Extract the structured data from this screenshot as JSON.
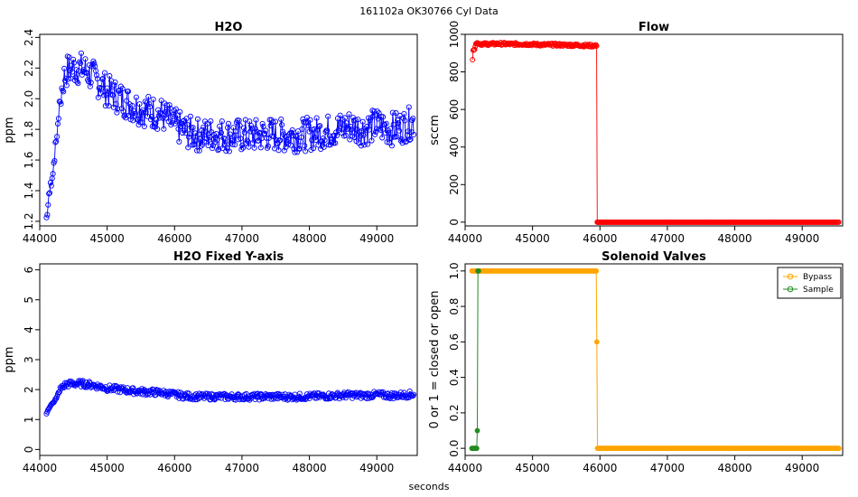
{
  "figure": {
    "suptitle": "161102a    OK30766   Cyl Data",
    "xlabel": "seconds"
  },
  "chart_data": [
    {
      "type": "line",
      "title": "H2O",
      "ylabel": "ppm",
      "xlim": [
        44000,
        49600
      ],
      "ylim": [
        1.17,
        2.42
      ],
      "xticks": [
        44000,
        45000,
        46000,
        47000,
        48000,
        49000
      ],
      "yticks": [
        1.2,
        1.4,
        1.6,
        1.8,
        2.0,
        2.2,
        2.4
      ],
      "ytick_labels": [
        "1.2",
        "1.4",
        "1.6",
        "1.8",
        "2.0",
        "2.2",
        "2.4"
      ],
      "markers": "open-circle",
      "series": [
        {
          "color": "#0000ff",
          "x": [
            44100,
            44150,
            44200,
            44250,
            44300,
            44350,
            44400,
            44500,
            44600,
            44700,
            44800,
            44900,
            45000,
            45200,
            45400,
            45600,
            45800,
            46000,
            46200,
            46400,
            46600,
            46800,
            47000,
            47200,
            47400,
            47600,
            47800,
            48000,
            48200,
            48400,
            48600,
            48800,
            49000,
            49200,
            49400,
            49550
          ],
          "y": [
            1.22,
            1.4,
            1.55,
            1.75,
            1.98,
            2.12,
            2.18,
            2.2,
            2.2,
            2.18,
            2.14,
            2.1,
            2.05,
            2.0,
            1.95,
            1.92,
            1.9,
            1.83,
            1.78,
            1.76,
            1.77,
            1.76,
            1.76,
            1.76,
            1.77,
            1.76,
            1.76,
            1.77,
            1.78,
            1.8,
            1.82,
            1.8,
            1.83,
            1.8,
            1.82,
            1.85
          ]
        }
      ]
    },
    {
      "type": "scatter",
      "title": "Flow",
      "ylabel": "sccm",
      "xlim": [
        44000,
        49600
      ],
      "ylim": [
        -20,
        1000
      ],
      "xticks": [
        44000,
        45000,
        46000,
        47000,
        48000,
        49000
      ],
      "yticks": [
        0,
        200,
        400,
        600,
        800,
        1000
      ],
      "ytick_labels": [
        "0",
        "200",
        "400",
        "600",
        "800",
        "1000"
      ],
      "markers": "open-circle",
      "series": [
        {
          "color": "#ff0000",
          "x": [
            44110,
            44120,
            44140,
            44160,
            44180,
            44200,
            44300,
            44500,
            44700,
            44900,
            45100,
            45300,
            45500,
            45700,
            45800,
            45900,
            45950,
            45960,
            46200,
            46500,
            47000,
            47500,
            48000,
            48500,
            49000,
            49500,
            49550
          ],
          "y": [
            865,
            915,
            920,
            950,
            955,
            950,
            948,
            950,
            948,
            948,
            945,
            945,
            943,
            942,
            940,
            940,
            938,
            0,
            0,
            0,
            0,
            0,
            0,
            0,
            0,
            0,
            0
          ]
        }
      ]
    },
    {
      "type": "line",
      "title": "H2O Fixed Y-axis",
      "ylabel": "ppm",
      "xlim": [
        44000,
        49600
      ],
      "ylim": [
        -0.2,
        6.2
      ],
      "xticks": [
        44000,
        45000,
        46000,
        47000,
        48000,
        49000
      ],
      "yticks": [
        0,
        1,
        2,
        3,
        4,
        5,
        6
      ],
      "ytick_labels": [
        "0",
        "1",
        "2",
        "3",
        "4",
        "5",
        "6"
      ],
      "markers": "open-circle",
      "series": [
        {
          "color": "#0000ff",
          "x": [
            44100,
            44150,
            44200,
            44250,
            44300,
            44350,
            44400,
            44500,
            44600,
            44700,
            44800,
            44900,
            45000,
            45200,
            45400,
            45600,
            45800,
            46000,
            46200,
            46400,
            46600,
            46800,
            47000,
            47200,
            47400,
            47600,
            47800,
            48000,
            48200,
            48400,
            48600,
            48800,
            49000,
            49200,
            49400,
            49550
          ],
          "y": [
            1.22,
            1.4,
            1.55,
            1.75,
            1.98,
            2.12,
            2.18,
            2.2,
            2.2,
            2.18,
            2.14,
            2.1,
            2.05,
            2.0,
            1.95,
            1.92,
            1.9,
            1.83,
            1.78,
            1.76,
            1.77,
            1.76,
            1.76,
            1.76,
            1.77,
            1.76,
            1.76,
            1.77,
            1.78,
            1.8,
            1.82,
            1.8,
            1.83,
            1.8,
            1.82,
            1.85
          ]
        }
      ]
    },
    {
      "type": "line",
      "title": "Solenoid Valves",
      "ylabel": "0 or 1 = closed or open",
      "xlim": [
        44000,
        49600
      ],
      "ylim": [
        -0.04,
        1.04
      ],
      "xticks": [
        44000,
        45000,
        46000,
        47000,
        48000,
        49000
      ],
      "yticks": [
        0.0,
        0.2,
        0.4,
        0.6,
        0.8,
        1.0
      ],
      "ytick_labels": [
        "0.0",
        "0.2",
        "0.4",
        "0.6",
        "0.8",
        "1.0"
      ],
      "legend": "top-right",
      "markers": "filled-circle",
      "series": [
        {
          "name": "Bypass",
          "color": "#ffa500",
          "x": [
            44100,
            44150,
            45950,
            45960,
            49550
          ],
          "y": [
            1,
            1,
            1,
            0,
            0
          ]
        },
        {
          "name": "Sample",
          "color": "#228b22",
          "x": [
            44100,
            44180,
            44190,
            44200
          ],
          "y": [
            0,
            0,
            1,
            1
          ]
        }
      ]
    }
  ]
}
